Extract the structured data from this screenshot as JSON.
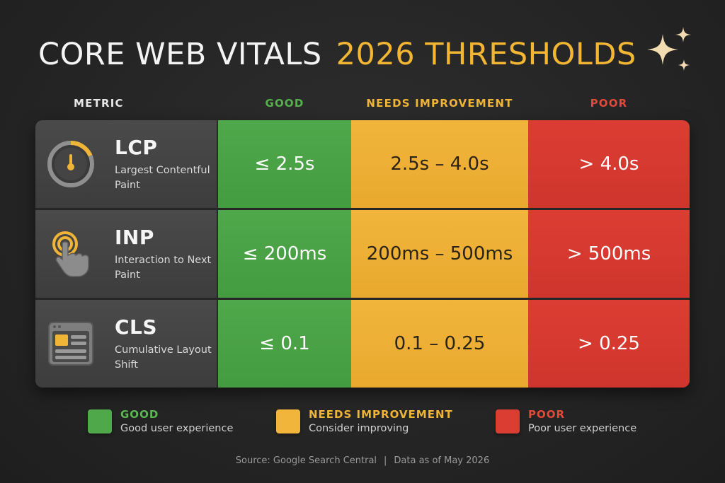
{
  "title": {
    "main": "CORE WEB VITALS",
    "highlight": "2026 THRESHOLDS"
  },
  "decoration_icon": "sparkles-icon",
  "colors": {
    "good": "#4fa84a",
    "needs_improvement": "#f1b53b",
    "poor": "#dc3d33",
    "title_accent": "#f2b632",
    "background": "#262626"
  },
  "columns": {
    "metric": "METRIC",
    "good": "GOOD",
    "needs": "NEEDS IMPROVEMENT",
    "poor": "POOR"
  },
  "rows": [
    {
      "icon": "timer-gauge-icon",
      "abbr": "LCP",
      "full": "Largest Contentful Paint",
      "good": "≤ 2.5s",
      "needs": "2.5s – 4.0s",
      "poor": "> 4.0s"
    },
    {
      "icon": "tap-hand-icon",
      "abbr": "INP",
      "full": "Interaction to Next Paint",
      "good": "≤ 200ms",
      "needs": "200ms – 500ms",
      "poor": "> 500ms"
    },
    {
      "icon": "layout-window-icon",
      "abbr": "CLS",
      "full": "Cumulative Layout Shift",
      "good": "≤ 0.1",
      "needs": "0.1 – 0.25",
      "poor": "> 0.25"
    }
  ],
  "legend": [
    {
      "title": "GOOD",
      "desc": "Good user experience",
      "color": "#4fa84a"
    },
    {
      "title": "NEEDS IMPROVEMENT",
      "desc": "Consider improving",
      "color": "#f1b53b"
    },
    {
      "title": "POOR",
      "desc": "Poor user experience",
      "color": "#dc3d33"
    }
  ],
  "footer": {
    "source": "Source: Google Search Central",
    "separator": "|",
    "date": "Data as of May 2026"
  }
}
